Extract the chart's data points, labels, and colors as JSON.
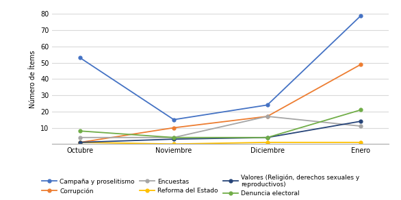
{
  "x_labels": [
    "Octubre",
    "Noviembre",
    "Diciembre",
    "Enero"
  ],
  "series": [
    {
      "label": "Campaña y proselitismo",
      "values": [
        53,
        15,
        24,
        79
      ],
      "color": "#4472C4",
      "marker": "o"
    },
    {
      "label": "Corrupción",
      "values": [
        1,
        10,
        17,
        49
      ],
      "color": "#ED7D31",
      "marker": "o"
    },
    {
      "label": "Encuestas",
      "values": [
        4,
        4,
        17,
        11
      ],
      "color": "#A5A5A5",
      "marker": "o"
    },
    {
      "label": "Reforma del Estado",
      "values": [
        1,
        0,
        1,
        1
      ],
      "color": "#FFC000",
      "marker": "o"
    },
    {
      "label": "Valores (Religión, derechos sexuales y\nreproductivos)",
      "values": [
        1,
        3,
        4,
        14
      ],
      "color": "#264478",
      "marker": "o"
    },
    {
      "label": "Denuncia electoral",
      "values": [
        8,
        4,
        4,
        21
      ],
      "color": "#70AD47",
      "marker": "o"
    }
  ],
  "ylabel": "Número de Ítems",
  "ylim": [
    0,
    80
  ],
  "yticks": [
    0,
    10,
    20,
    30,
    40,
    50,
    60,
    70,
    80
  ],
  "background_color": "#ffffff",
  "grid_color": "#d9d9d9",
  "axis_fontsize": 7,
  "legend_fontsize": 6.5
}
